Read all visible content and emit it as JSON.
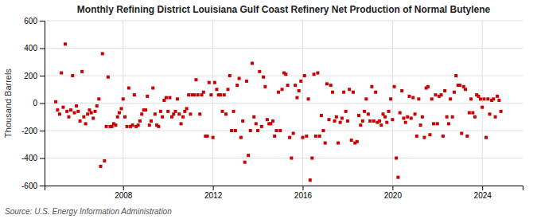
{
  "chart_data": {
    "type": "scatter",
    "title": "Monthly Refining District Louisiana Gulf Coast Refinery Net Production of Normal Butylene",
    "y_label": "Thousand Barrels",
    "source": "Source: U.S. Energy Information Administration",
    "color": "#cc0000",
    "marker": "square",
    "grid": true,
    "xlim": [
      2004.5,
      2025.8
    ],
    "xticks": [
      2008,
      2012,
      2016,
      2020,
      2024
    ],
    "ylim": [
      -600,
      600
    ],
    "yticks": [
      -600,
      -400,
      -200,
      0,
      200,
      400,
      600
    ],
    "x": [
      2005.0,
      2005.08,
      2005.17,
      2005.25,
      2005.33,
      2005.42,
      2005.5,
      2005.58,
      2005.67,
      2005.75,
      2005.83,
      2005.92,
      2006.0,
      2006.08,
      2006.17,
      2006.25,
      2006.33,
      2006.42,
      2006.5,
      2006.58,
      2006.67,
      2006.75,
      2006.83,
      2006.92,
      2007.0,
      2007.08,
      2007.17,
      2007.25,
      2007.33,
      2007.42,
      2007.5,
      2007.58,
      2007.67,
      2007.75,
      2007.83,
      2007.92,
      2008.0,
      2008.08,
      2008.17,
      2008.25,
      2008.33,
      2008.42,
      2008.5,
      2008.58,
      2008.67,
      2008.75,
      2008.83,
      2008.92,
      2009.0,
      2009.08,
      2009.17,
      2009.25,
      2009.33,
      2009.42,
      2009.5,
      2009.58,
      2009.67,
      2009.75,
      2009.83,
      2009.92,
      2010.0,
      2010.08,
      2010.17,
      2010.25,
      2010.33,
      2010.42,
      2010.5,
      2010.58,
      2010.67,
      2010.75,
      2010.83,
      2010.92,
      2011.0,
      2011.08,
      2011.17,
      2011.25,
      2011.33,
      2011.42,
      2011.5,
      2011.58,
      2011.67,
      2011.75,
      2011.83,
      2011.92,
      2012.0,
      2012.08,
      2012.17,
      2012.25,
      2012.33,
      2012.42,
      2012.5,
      2012.58,
      2012.67,
      2012.75,
      2012.83,
      2012.92,
      2013.0,
      2013.08,
      2013.17,
      2013.25,
      2013.33,
      2013.42,
      2013.5,
      2013.58,
      2013.67,
      2013.75,
      2013.83,
      2013.92,
      2014.0,
      2014.08,
      2014.17,
      2014.25,
      2014.33,
      2014.42,
      2014.5,
      2014.58,
      2014.67,
      2014.75,
      2014.83,
      2014.92,
      2015.0,
      2015.08,
      2015.17,
      2015.25,
      2015.33,
      2015.42,
      2015.5,
      2015.58,
      2015.67,
      2015.75,
      2015.83,
      2015.92,
      2016.0,
      2016.08,
      2016.17,
      2016.25,
      2016.33,
      2016.42,
      2016.5,
      2016.58,
      2016.67,
      2016.75,
      2016.83,
      2016.92,
      2017.0,
      2017.08,
      2017.17,
      2017.25,
      2017.33,
      2017.42,
      2017.5,
      2017.58,
      2017.67,
      2017.75,
      2017.83,
      2017.92,
      2018.0,
      2018.08,
      2018.17,
      2018.25,
      2018.33,
      2018.42,
      2018.5,
      2018.58,
      2018.67,
      2018.75,
      2018.83,
      2018.92,
      2019.0,
      2019.08,
      2019.17,
      2019.25,
      2019.33,
      2019.42,
      2019.5,
      2019.58,
      2019.67,
      2019.75,
      2019.83,
      2019.92,
      2020.0,
      2020.08,
      2020.17,
      2020.25,
      2020.33,
      2020.42,
      2020.5,
      2020.58,
      2020.67,
      2020.75,
      2020.83,
      2020.92,
      2021.0,
      2021.08,
      2021.17,
      2021.25,
      2021.33,
      2021.42,
      2021.5,
      2021.58,
      2021.67,
      2021.75,
      2021.83,
      2021.92,
      2022.0,
      2022.08,
      2022.17,
      2022.25,
      2022.33,
      2022.42,
      2022.5,
      2022.58,
      2022.67,
      2022.75,
      2022.83,
      2022.92,
      2023.0,
      2023.08,
      2023.17,
      2023.25,
      2023.33,
      2023.42,
      2023.5,
      2023.58,
      2023.67,
      2023.75,
      2023.83,
      2023.92,
      2024.0,
      2024.08,
      2024.17,
      2024.25,
      2024.33,
      2024.42,
      2024.5,
      2024.58,
      2024.67,
      2024.75,
      2024.83
    ],
    "values": [
      10,
      -50,
      -80,
      220,
      -30,
      430,
      -60,
      -100,
      -50,
      200,
      -70,
      -20,
      -60,
      -130,
      230,
      -100,
      -150,
      -80,
      -50,
      -70,
      -110,
      -60,
      -20,
      30,
      -460,
      360,
      -420,
      -170,
      190,
      -170,
      -170,
      -150,
      -160,
      -100,
      -70,
      -40,
      30,
      -100,
      -170,
      110,
      -170,
      -160,
      60,
      -170,
      -160,
      -130,
      -80,
      -50,
      -50,
      50,
      -160,
      -130,
      110,
      -80,
      -160,
      -170,
      -60,
      -100,
      20,
      40,
      -60,
      40,
      -100,
      -80,
      -60,
      30,
      -80,
      -150,
      -100,
      -60,
      -40,
      60,
      -80,
      60,
      60,
      170,
      60,
      -80,
      60,
      80,
      -240,
      -240,
      150,
      60,
      -250,
      150,
      100,
      60,
      60,
      -60,
      60,
      -80,
      100,
      200,
      -200,
      -60,
      -200,
      130,
      180,
      -250,
      -130,
      -430,
      160,
      -380,
      -200,
      290,
      -100,
      -150,
      -200,
      230,
      -170,
      190,
      120,
      -120,
      -150,
      -150,
      -130,
      -240,
      -200,
      80,
      -200,
      100,
      220,
      210,
      130,
      -250,
      -400,
      -220,
      130,
      40,
      90,
      160,
      -250,
      200,
      -240,
      30,
      -560,
      -400,
      210,
      -240,
      220,
      -240,
      -90,
      -200,
      -290,
      140,
      -120,
      130,
      80,
      -130,
      -100,
      -290,
      -140,
      -110,
      80,
      -60,
      -130,
      100,
      -270,
      80,
      -290,
      -280,
      -90,
      -160,
      -130,
      -60,
      30,
      -80,
      -130,
      120,
      -130,
      80,
      -140,
      -130,
      -160,
      -80,
      -100,
      -140,
      -60,
      30,
      -120,
      120,
      -400,
      -540,
      -70,
      90,
      -110,
      -140,
      -100,
      50,
      -110,
      40,
      -80,
      -240,
      30,
      -160,
      -100,
      -250,
      110,
      120,
      -230,
      30,
      -150,
      60,
      -150,
      50,
      60,
      -240,
      90,
      -100,
      -150,
      30,
      -100,
      80,
      200,
      130,
      130,
      -220,
      120,
      100,
      -240,
      -70,
      30,
      -70,
      -100,
      60,
      50,
      30,
      -30,
      30,
      -250,
      30,
      -80,
      20,
      30,
      -100,
      50,
      20,
      -60
    ]
  }
}
